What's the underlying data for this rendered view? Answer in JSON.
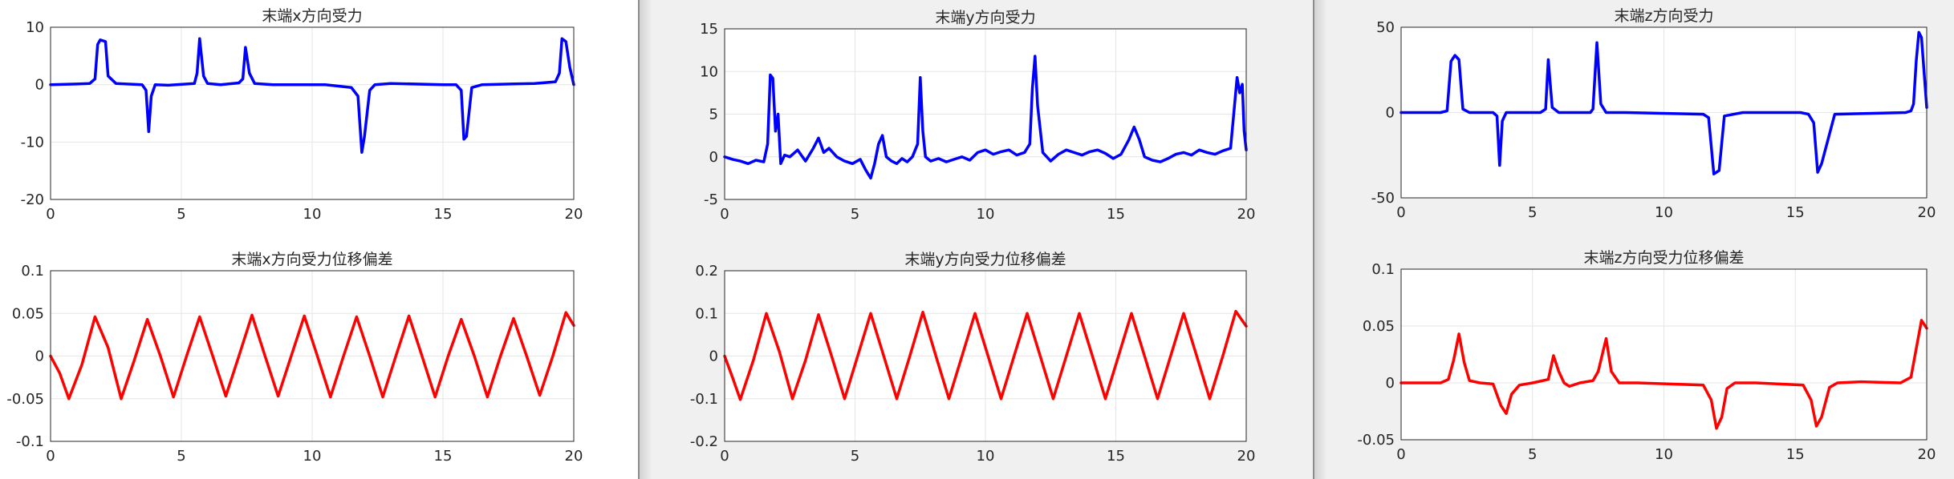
{
  "chart_data": [
    {
      "type": "line",
      "title": "末端x方向受力",
      "xlim": [
        0,
        20
      ],
      "ylim": [
        -20,
        10
      ],
      "xticks": [
        "0",
        "5",
        "10",
        "15",
        "20"
      ],
      "yticks": [
        "-20",
        "-10",
        "0",
        "10"
      ],
      "grid": true,
      "series": [
        {
          "color": "#0000ff",
          "x": [
            0,
            1.0,
            1.5,
            1.7,
            1.8,
            1.9,
            2.1,
            2.2,
            2.5,
            3.5,
            3.65,
            3.75,
            3.85,
            4.0,
            4.5,
            5.5,
            5.6,
            5.7,
            5.85,
            6.0,
            6.5,
            7.2,
            7.35,
            7.45,
            7.6,
            7.8,
            8.5,
            10.5,
            11.5,
            11.75,
            11.9,
            12.0,
            12.2,
            12.4,
            13.0,
            15.0,
            15.5,
            15.7,
            15.8,
            15.9,
            16.1,
            16.5,
            18.5,
            19.3,
            19.45,
            19.55,
            19.7,
            19.85,
            20.0
          ],
          "y": [
            0,
            0.1,
            0.2,
            1.0,
            7.0,
            7.8,
            7.5,
            1.5,
            0.2,
            0,
            -1.0,
            -8.2,
            -2.0,
            0,
            -0.1,
            0.2,
            2.0,
            8.0,
            1.5,
            0.2,
            0,
            0.3,
            1.0,
            6.5,
            2.0,
            0.2,
            0,
            0,
            -0.5,
            -2.0,
            -11.8,
            -9.0,
            -1.0,
            0,
            0.2,
            0,
            0,
            -1.0,
            -9.5,
            -9.0,
            -0.5,
            0,
            0.2,
            0.5,
            2.0,
            8.0,
            7.5,
            3.0,
            0
          ]
        }
      ]
    },
    {
      "type": "line",
      "title": "末端x方向受力位移偏差",
      "xlim": [
        0,
        20
      ],
      "ylim": [
        -0.1,
        0.1
      ],
      "xticks": [
        "0",
        "5",
        "10",
        "15",
        "20"
      ],
      "yticks": [
        "-0.1",
        "-0.05",
        "0",
        "0.05",
        "0.1"
      ],
      "grid": true,
      "series": [
        {
          "color": "#ff0000",
          "x": [
            0,
            0.35,
            0.7,
            1.2,
            1.7,
            2.2,
            2.7,
            3.2,
            3.7,
            4.2,
            4.7,
            5.2,
            5.7,
            6.2,
            6.7,
            7.2,
            7.7,
            8.2,
            8.7,
            9.2,
            9.7,
            10.2,
            10.7,
            11.2,
            11.7,
            12.2,
            12.7,
            13.2,
            13.7,
            14.2,
            14.7,
            15.2,
            15.7,
            16.2,
            16.7,
            17.2,
            17.7,
            18.2,
            18.7,
            19.2,
            19.7,
            20.0
          ],
          "y": [
            0,
            -0.02,
            -0.05,
            -0.01,
            0.046,
            0.01,
            -0.05,
            -0.005,
            0.043,
            0.0,
            -0.048,
            0.0,
            0.046,
            0.0,
            -0.047,
            0.0,
            0.048,
            0.0,
            -0.047,
            0.0,
            0.047,
            0.0,
            -0.048,
            0.0,
            0.046,
            0.0,
            -0.048,
            0.0,
            0.047,
            0.0,
            -0.048,
            0.0,
            0.043,
            0.0,
            -0.048,
            0.0,
            0.044,
            0.0,
            -0.046,
            0.0,
            0.051,
            0.036
          ]
        }
      ]
    },
    {
      "type": "line",
      "title": "末端y方向受力",
      "xlim": [
        0,
        20
      ],
      "ylim": [
        -5,
        15
      ],
      "xticks": [
        "0",
        "5",
        "10",
        "15",
        "20"
      ],
      "yticks": [
        "-5",
        "0",
        "5",
        "10",
        "15"
      ],
      "grid": true,
      "series": [
        {
          "color": "#0000ff",
          "x": [
            0,
            0.3,
            0.6,
            0.9,
            1.2,
            1.5,
            1.65,
            1.75,
            1.85,
            1.95,
            2.05,
            2.15,
            2.3,
            2.5,
            2.8,
            3.1,
            3.4,
            3.6,
            3.8,
            4.0,
            4.3,
            4.6,
            4.9,
            5.2,
            5.4,
            5.6,
            5.75,
            5.9,
            6.05,
            6.2,
            6.4,
            6.6,
            6.8,
            7.0,
            7.2,
            7.4,
            7.5,
            7.6,
            7.7,
            7.9,
            8.2,
            8.5,
            8.8,
            9.1,
            9.4,
            9.7,
            10.0,
            10.3,
            10.6,
            10.9,
            11.2,
            11.5,
            11.7,
            11.8,
            11.9,
            12.0,
            12.2,
            12.5,
            12.8,
            13.1,
            13.4,
            13.7,
            14.0,
            14.3,
            14.6,
            14.9,
            15.2,
            15.5,
            15.7,
            15.9,
            16.1,
            16.4,
            16.7,
            17.0,
            17.3,
            17.6,
            17.9,
            18.2,
            18.5,
            18.8,
            19.1,
            19.4,
            19.55,
            19.65,
            19.75,
            19.85,
            19.92,
            20.0
          ],
          "y": [
            0,
            -0.3,
            -0.5,
            -0.8,
            -0.4,
            -0.6,
            1.5,
            9.6,
            9.2,
            3.0,
            5.0,
            -0.8,
            0.2,
            0,
            0.8,
            -0.5,
            1.0,
            2.2,
            0.5,
            1.0,
            0,
            -0.5,
            -0.8,
            -0.3,
            -1.5,
            -2.5,
            -0.8,
            1.5,
            2.5,
            0,
            -0.5,
            -0.8,
            -0.2,
            -0.6,
            0,
            1.5,
            9.3,
            3.0,
            0,
            -0.5,
            -0.2,
            -0.6,
            -0.3,
            0,
            -0.4,
            0.5,
            0.8,
            0.3,
            0.6,
            0.8,
            0.2,
            0.5,
            1.5,
            8.0,
            11.8,
            6.0,
            0.5,
            -0.5,
            0.3,
            0.8,
            0.5,
            0.2,
            0.6,
            0.8,
            0.4,
            -0.2,
            0.3,
            2.0,
            3.5,
            2.0,
            0.0,
            -0.4,
            -0.6,
            -0.2,
            0.3,
            0.5,
            0.2,
            0.8,
            0.5,
            0.3,
            0.7,
            1.0,
            6.0,
            9.3,
            7.5,
            8.5,
            3.0,
            0.8
          ]
        }
      ]
    },
    {
      "type": "line",
      "title": "末端y方向受力位移偏差",
      "xlim": [
        0,
        20
      ],
      "ylim": [
        -0.2,
        0.2
      ],
      "xticks": [
        "0",
        "5",
        "10",
        "15",
        "20"
      ],
      "yticks": [
        "-0.2",
        "-0.1",
        "0",
        "0.1",
        "0.2"
      ],
      "grid": true,
      "series": [
        {
          "color": "#ff0000",
          "x": [
            0,
            0.3,
            0.6,
            1.1,
            1.6,
            2.1,
            2.6,
            3.1,
            3.6,
            4.1,
            4.6,
            5.1,
            5.6,
            6.1,
            6.6,
            7.1,
            7.6,
            8.1,
            8.6,
            9.1,
            9.6,
            10.1,
            10.6,
            11.1,
            11.6,
            12.1,
            12.6,
            13.1,
            13.6,
            14.1,
            14.6,
            15.1,
            15.6,
            16.1,
            16.6,
            17.1,
            17.6,
            18.1,
            18.6,
            19.1,
            19.6,
            20.0
          ],
          "y": [
            0,
            -0.05,
            -0.102,
            -0.01,
            0.1,
            0.01,
            -0.1,
            -0.01,
            0.097,
            0.0,
            -0.1,
            0.0,
            0.1,
            0.0,
            -0.1,
            0.0,
            0.103,
            0.0,
            -0.1,
            0.0,
            0.1,
            0.0,
            -0.1,
            0.0,
            0.1,
            0.0,
            -0.1,
            0.0,
            0.1,
            0.0,
            -0.1,
            0.0,
            0.1,
            0.0,
            -0.1,
            0.0,
            0.1,
            0.0,
            -0.1,
            0.0,
            0.105,
            0.07
          ]
        }
      ]
    },
    {
      "type": "line",
      "title": "末端z方向受力",
      "xlim": [
        0,
        20
      ],
      "ylim": [
        -50,
        50
      ],
      "xticks": [
        "0",
        "5",
        "10",
        "15",
        "20"
      ],
      "yticks": [
        "-50",
        "0",
        "50"
      ],
      "grid": true,
      "series": [
        {
          "color": "#0000ff",
          "x": [
            0,
            1.5,
            1.75,
            1.9,
            2.05,
            2.2,
            2.35,
            2.6,
            3.5,
            3.65,
            3.75,
            3.85,
            4.0,
            4.5,
            5.3,
            5.5,
            5.6,
            5.75,
            6.0,
            6.5,
            7.2,
            7.3,
            7.45,
            7.6,
            7.8,
            8.5,
            11.5,
            11.7,
            11.9,
            12.1,
            12.3,
            13.0,
            15.2,
            15.5,
            15.7,
            15.85,
            16.0,
            16.5,
            19.2,
            19.4,
            19.5,
            19.6,
            19.7,
            19.8,
            20.0
          ],
          "y": [
            0,
            0,
            1.0,
            30.0,
            33.5,
            31.0,
            2.0,
            0,
            0,
            -2.0,
            -31.0,
            -5.0,
            0,
            0,
            0,
            2.0,
            31.0,
            3.0,
            0,
            0,
            0,
            2.0,
            41.0,
            5.0,
            0,
            0,
            -1.0,
            -3.0,
            -36.0,
            -34.0,
            -2.0,
            0,
            0,
            -1.0,
            -6.0,
            -35.0,
            -30.0,
            -1.0,
            0,
            1.0,
            5.0,
            30.0,
            47.0,
            44.0,
            3.0
          ]
        }
      ]
    },
    {
      "type": "line",
      "title": "末端z方向受力位移偏差",
      "xlim": [
        0,
        20
      ],
      "ylim": [
        -0.05,
        0.1
      ],
      "xticks": [
        "0",
        "5",
        "10",
        "15",
        "20"
      ],
      "yticks": [
        "-0.05",
        "0",
        "0.05",
        "0.1"
      ],
      "grid": true,
      "series": [
        {
          "color": "#ff0000",
          "x": [
            0,
            1.5,
            1.8,
            2.0,
            2.2,
            2.4,
            2.6,
            3.0,
            3.5,
            3.8,
            4.0,
            4.2,
            4.5,
            5.0,
            5.6,
            5.8,
            6.0,
            6.2,
            6.4,
            6.8,
            7.3,
            7.5,
            7.8,
            8.0,
            8.3,
            9.0,
            11.5,
            11.8,
            12.0,
            12.2,
            12.4,
            12.7,
            13.5,
            15.3,
            15.6,
            15.8,
            16.0,
            16.3,
            16.6,
            17.5,
            19.0,
            19.4,
            19.6,
            19.8,
            20.0
          ],
          "y": [
            0,
            0,
            0.003,
            0.02,
            0.043,
            0.018,
            0.002,
            0,
            -0.001,
            -0.02,
            -0.027,
            -0.01,
            -0.002,
            0,
            0.003,
            0.024,
            0.01,
            0.0,
            -0.003,
            0,
            0.002,
            0.01,
            0.039,
            0.01,
            0.0,
            0,
            -0.002,
            -0.015,
            -0.04,
            -0.03,
            -0.005,
            0,
            0,
            -0.002,
            -0.015,
            -0.038,
            -0.03,
            -0.004,
            0,
            0.001,
            0,
            0.005,
            0.03,
            0.055,
            0.048
          ]
        }
      ]
    }
  ]
}
